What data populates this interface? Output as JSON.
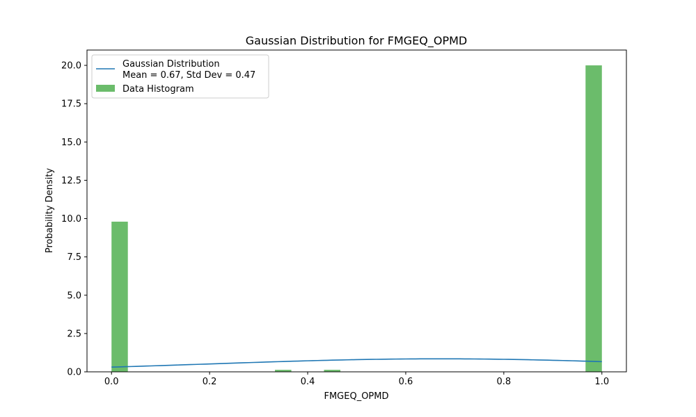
{
  "chart_data": {
    "type": "bar",
    "title": "Gaussian Distribution for FMGEQ_OPMD",
    "xlabel": "FMGEQ_OPMD",
    "ylabel": "Probability Density",
    "xlim": [
      -0.05,
      1.05
    ],
    "ylim": [
      0,
      21
    ],
    "xticks": [
      0.0,
      0.2,
      0.4,
      0.6,
      0.8,
      1.0
    ],
    "xtick_labels": [
      "0.0",
      "0.2",
      "0.4",
      "0.6",
      "0.8",
      "1.0"
    ],
    "yticks": [
      0.0,
      2.5,
      5.0,
      7.5,
      10.0,
      12.5,
      15.0,
      17.5,
      20.0
    ],
    "ytick_labels": [
      "0.0",
      "2.5",
      "5.0",
      "7.5",
      "10.0",
      "12.5",
      "15.0",
      "17.5",
      "20.0"
    ],
    "grid": false,
    "legend_position": "top-left",
    "series": [
      {
        "kind": "line",
        "name": "Gaussian Distribution\nMean = 0.67, Std Dev = 0.47",
        "name_lines": [
          "Gaussian Distribution",
          "Mean = 0.67, Std Dev = 0.47"
        ],
        "color": "#1f77b4",
        "mean": 0.67,
        "std": 0.47,
        "x_range": [
          0.0,
          1.0
        ]
      },
      {
        "kind": "histogram",
        "name": "Data Histogram",
        "color": "#2ca02c",
        "alpha": 0.7,
        "bin_width": 0.0333,
        "bins": [
          {
            "x0": 0.0,
            "x1": 0.0333,
            "value": 9.8
          },
          {
            "x0": 0.3333,
            "x1": 0.3667,
            "value": 0.13
          },
          {
            "x0": 0.4333,
            "x1": 0.4667,
            "value": 0.13
          },
          {
            "x0": 0.9667,
            "x1": 1.0,
            "value": 20.0
          }
        ]
      }
    ]
  }
}
